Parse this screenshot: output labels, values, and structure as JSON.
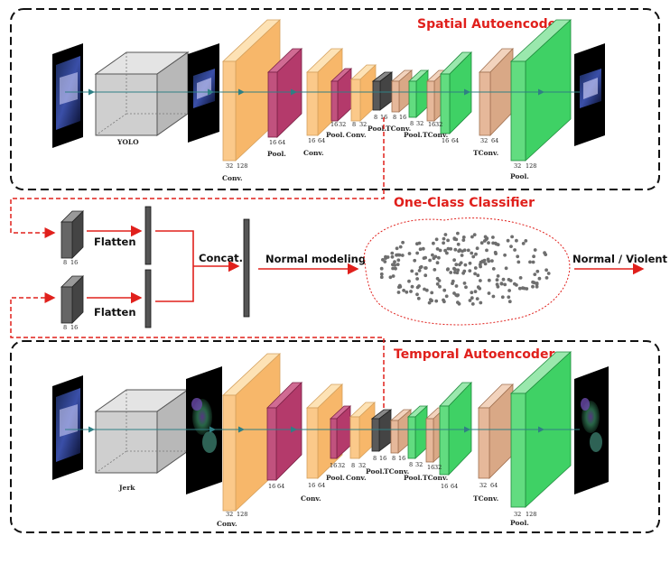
{
  "colors": {
    "accent": "#e0201c",
    "conv": "#fbc98a",
    "pool": "#b43a6b",
    "deep_pool": "#555555",
    "tconv": "#e6b89a",
    "green": "#3fd165",
    "box": "#d0d0d0",
    "arrow": "#2f7f84"
  },
  "sections": {
    "spatial_title": "Spatial Autoencoder",
    "classifier_title": "One-Class Classifier",
    "temporal_title": "Temporal Autoencoder"
  },
  "spatial": {
    "preprocess": "YOLO",
    "labels": {
      "conv1": "Conv.",
      "pool1": "Pool.",
      "conv2": "Conv.",
      "pool2": "Pool.",
      "conv3": "Conv.",
      "pool3": "Pool.",
      "tconv1": "TConv.",
      "pool4": "Pool.",
      "tconv2": "TConv.",
      "tconv3": "TConv.",
      "pool5": "Pool."
    },
    "dims": {
      "conv1_a": "32",
      "conv1_b": "128",
      "pool1_a": "16",
      "pool1_b": "64",
      "conv2_a": "16",
      "conv2_b": "64",
      "pool2_a": "16",
      "pool2_b": "32",
      "conv3_a": "8",
      "conv3_b": "32",
      "pool3_a": "8",
      "pool3_b": "16",
      "tconv1_a": "8",
      "tconv1_b": "16",
      "pool4_a": "8",
      "pool4_b": "32",
      "tconv2_a": "16",
      "tconv2_b": "32",
      "tconv3_a": "16",
      "tconv3_b": "64",
      "pool5_a": "32",
      "pool5_b": "64",
      "out_a": "32",
      "out_b": "128"
    }
  },
  "temporal": {
    "preprocess": "Jerk",
    "labels": {
      "conv1": "Conv.",
      "conv2": "Conv.",
      "pool2": "Pool.",
      "conv3": "Conv.",
      "pool3": "Pool.",
      "tconv1": "TConv.",
      "pool4": "Pool.",
      "tconv2": "TConv.",
      "tconv3": "TConv.",
      "pool5": "Pool."
    },
    "dims": {
      "conv1_a": "32",
      "conv1_b": "128",
      "pool1_a": "16",
      "pool1_b": "64",
      "conv2_a": "16",
      "conv2_b": "64",
      "pool2_a": "16",
      "pool2_b": "32",
      "conv3_a": "8",
      "conv3_b": "32",
      "pool3_a": "8",
      "pool3_b": "16",
      "tconv1_a": "8",
      "tconv1_b": "16",
      "pool4_a": "8",
      "pool4_b": "32",
      "tconv2_a": "16",
      "tconv2_b": "32",
      "tconv3_a": "16",
      "tconv3_b": "64",
      "pool5_a": "32",
      "pool5_b": "64",
      "out_a": "32",
      "out_b": "128"
    }
  },
  "classifier": {
    "flatten1": "Flatten",
    "flatten2": "Flatten",
    "concat": "Concat.",
    "normal_modeling": "Normal modeling",
    "output": "Normal / Violent",
    "feat1_a": "8",
    "feat1_b": "16",
    "feat2_a": "8",
    "feat2_b": "16"
  }
}
